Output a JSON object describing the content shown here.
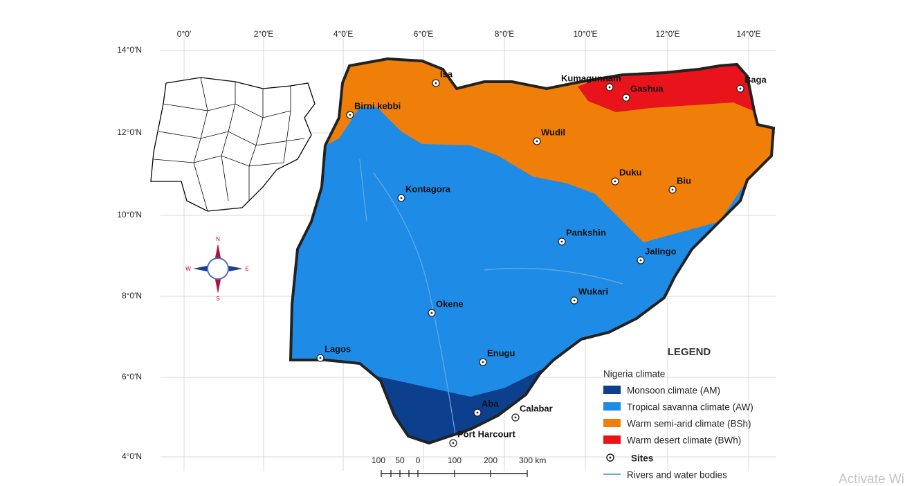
{
  "map": {
    "lon_labels": [
      "0°0′",
      "2°0′E",
      "4°0′E",
      "6°0′E",
      "8°0′E",
      "10°0′E",
      "12°0′E",
      "14°0′E"
    ],
    "lat_labels": [
      "14°0′N",
      "12°0′N",
      "10°0′N",
      "8°0′N",
      "6°0′N",
      "4°0′N"
    ],
    "sites": [
      "Isa",
      "Birni kebbi",
      "Kumagunnam",
      "Gashua",
      "Baga",
      "Wudil",
      "Duku",
      "Biu",
      "Kontagora",
      "Pankshin",
      "Jalingo",
      "Wukari",
      "Okene",
      "Lagos",
      "Enugu",
      "Aba",
      "Calabar",
      "Port Harcourt"
    ],
    "compass": {
      "n": "N",
      "s": "S",
      "e": "E",
      "w": "W"
    },
    "legend": {
      "title": "LEGEND",
      "group": "Nigeria climate",
      "items": [
        {
          "label": "Monsoon climate (AM)",
          "color": "#0d3f8f"
        },
        {
          "label": "Tropical savanna climate (AW)",
          "color": "#1e8ce6"
        },
        {
          "label": "Warm semi-arid climate (BSh)",
          "color": "#f07f0a"
        },
        {
          "label": "Warm desert climate (BWh)",
          "color": "#e8131b"
        }
      ],
      "sites": "Sites",
      "rivers": "Rivers and water bodies"
    },
    "scale": [
      "100",
      "50",
      "0",
      "100",
      "200",
      "300 km"
    ]
  },
  "watermark": "Activate Wi"
}
